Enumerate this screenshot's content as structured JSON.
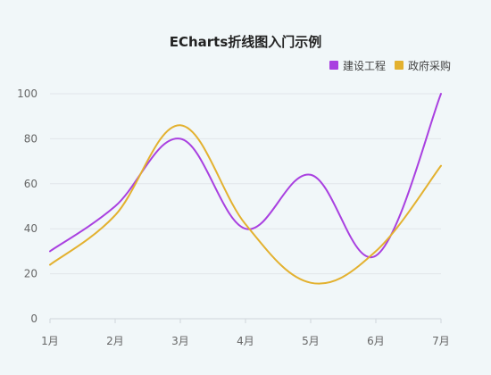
{
  "chart_data": {
    "type": "line",
    "title": "ECharts折线图入门示例",
    "categories": [
      "1月",
      "2月",
      "3月",
      "4月",
      "5月",
      "6月",
      "7月"
    ],
    "series": [
      {
        "name": "建设工程",
        "values": [
          30,
          50,
          80,
          40,
          64,
          28,
          100
        ],
        "color": "#a940e0"
      },
      {
        "name": "政府采购",
        "values": [
          24,
          46,
          86,
          42,
          16,
          30,
          68
        ],
        "color": "#e3b12f"
      }
    ],
    "yticks": [
      0,
      20,
      40,
      60,
      80,
      100
    ],
    "ylim": [
      0,
      100
    ],
    "smooth": true,
    "grid": true,
    "legend_position": "top-right"
  }
}
